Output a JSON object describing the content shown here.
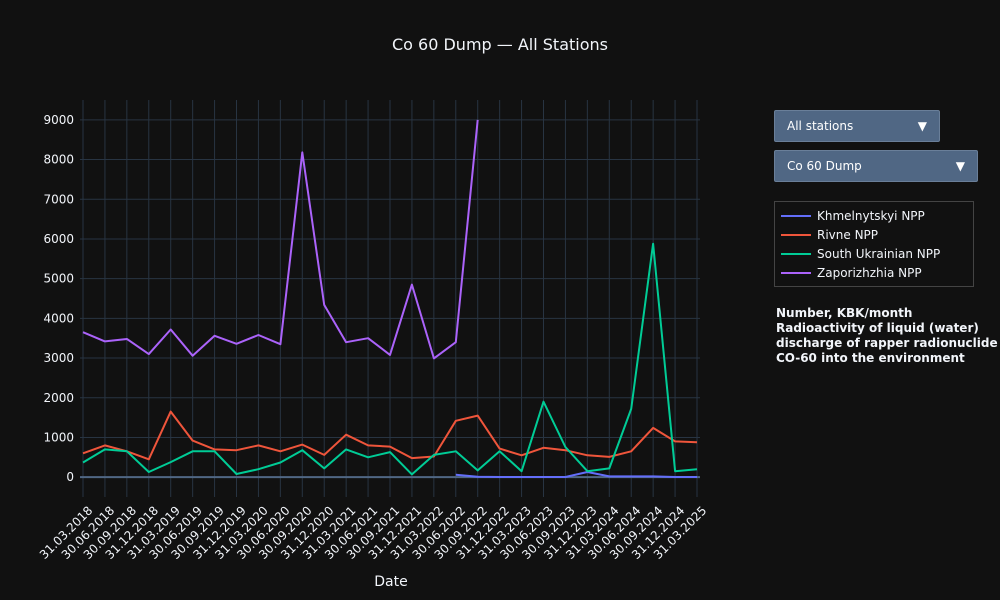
{
  "chart_data": {
    "type": "line",
    "title": "Co 60 Dump — All Stations",
    "xlabel": "Date",
    "ylabel": "",
    "ylim": [
      -500,
      9500
    ],
    "yticks": [
      0,
      1000,
      2000,
      3000,
      4000,
      5000,
      6000,
      7000,
      8000,
      9000
    ],
    "categories": [
      "31.03.2018",
      "30.06.2018",
      "30.09.2018",
      "31.12.2018",
      "31.03.2019",
      "30.06.2019",
      "30.09.2019",
      "31.12.2019",
      "31.03.2020",
      "30.06.2020",
      "30.09.2020",
      "31.12.2020",
      "31.03.2021",
      "30.06.2021",
      "30.09.2021",
      "31.12.2021",
      "31.03.2022",
      "30.06.2022",
      "30.09.2022",
      "31.12.2022",
      "31.03.2023",
      "30.06.2023",
      "30.09.2023",
      "31.12.2023",
      "31.03.2024",
      "30.06.2024",
      "30.09.2024",
      "31.12.2024",
      "31.03.2025"
    ],
    "series": [
      {
        "name": "Khmelnytskyi NPP",
        "color": "#636efa",
        "values": [
          null,
          null,
          null,
          null,
          null,
          null,
          null,
          null,
          null,
          null,
          null,
          null,
          null,
          null,
          null,
          null,
          null,
          60,
          10,
          5,
          5,
          5,
          5,
          130,
          20,
          20,
          20,
          5,
          5
        ]
      },
      {
        "name": "Rivne NPP",
        "color": "#ef553b",
        "values": [
          600,
          800,
          650,
          450,
          1650,
          920,
          700,
          680,
          800,
          650,
          820,
          560,
          1070,
          800,
          770,
          480,
          520,
          1420,
          1550,
          720,
          550,
          740,
          680,
          550,
          510,
          650,
          1240,
          900,
          880
        ]
      },
      {
        "name": "South Ukrainian NPP",
        "color": "#00cc96",
        "values": [
          370,
          700,
          650,
          130,
          380,
          650,
          650,
          80,
          200,
          370,
          680,
          220,
          700,
          500,
          630,
          70,
          560,
          650,
          170,
          650,
          150,
          1900,
          760,
          150,
          220,
          1720,
          5880,
          150,
          200
        ]
      },
      {
        "name": "Zaporizhzhia NPP",
        "color": "#ab63fa",
        "values": [
          3650,
          3420,
          3480,
          3100,
          3720,
          3060,
          3560,
          3360,
          3580,
          3350,
          8180,
          4340,
          3400,
          3500,
          3080,
          4850,
          2990,
          3400,
          9000,
          null,
          null,
          null,
          null,
          null,
          null,
          null,
          null,
          null,
          null
        ]
      }
    ],
    "legend_position": "right",
    "grid": true
  },
  "controls": {
    "station_selected": "All stations",
    "metric_selected": "Co 60 Dump",
    "arrow": "▼"
  },
  "annotation": "Number, KBK/month Radioactivity of liquid (water) discharge of rapper radionuclide CO-60 into the environment"
}
